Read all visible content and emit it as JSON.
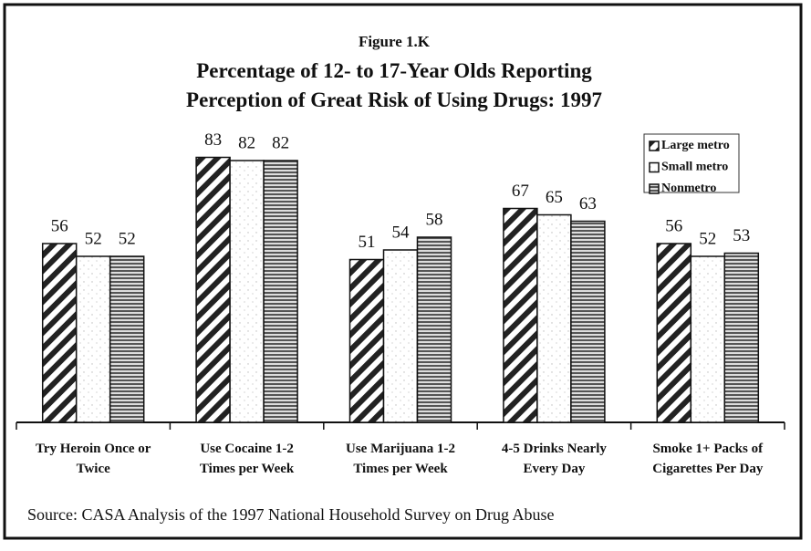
{
  "chart_data": {
    "type": "bar",
    "figure_label": "Figure 1.K",
    "title": "Percentage of 12- to 17-Year Olds Reporting\nPerception of Great Risk of Using Drugs: 1997",
    "source": "Source: CASA Analysis of the 1997 National Household Survey on Drug Abuse",
    "categories": [
      "Try Heroin Once or\nTwice",
      "Use Cocaine 1-2\nTimes per Week",
      "Use Marijuana 1-2\nTimes per Week",
      "4-5 Drinks Nearly\nEvery Day",
      "Smoke 1+ Packs of\nCigarettes Per Day"
    ],
    "series": [
      {
        "name": "Large metro",
        "color": "#222222",
        "values": [
          56,
          83,
          51,
          67,
          56
        ]
      },
      {
        "name": "Small metro",
        "color": "#bbbbbb",
        "values": [
          52,
          82,
          54,
          65,
          52
        ]
      },
      {
        "name": "Nonmetro",
        "color": "#555555",
        "values": [
          52,
          82,
          58,
          63,
          53
        ]
      }
    ],
    "legend": "upper right"
  }
}
